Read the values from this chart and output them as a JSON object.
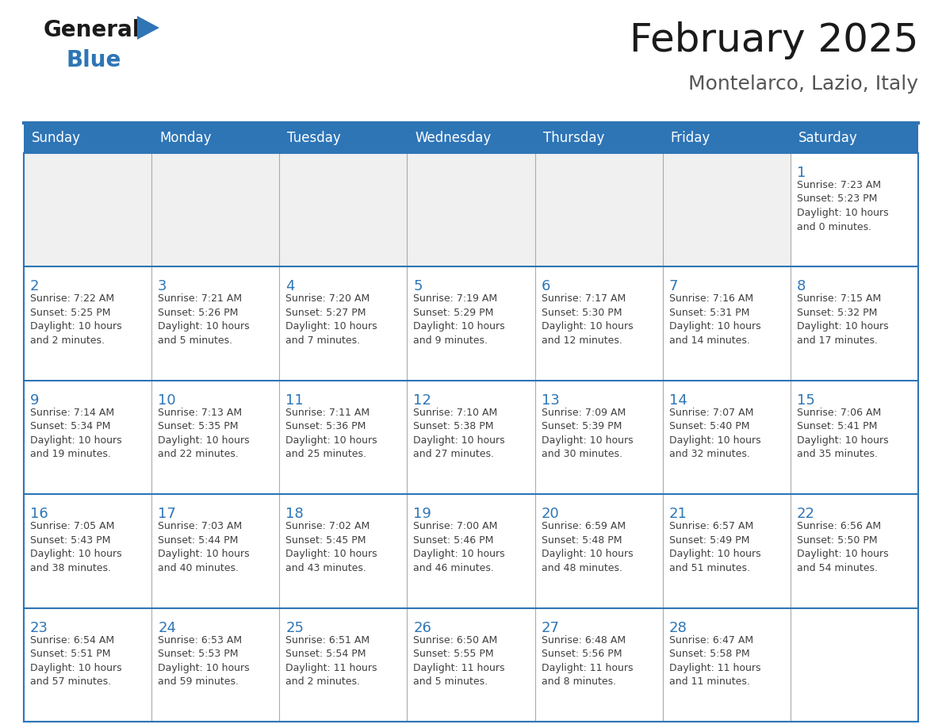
{
  "title": "February 2025",
  "subtitle": "Montelarco, Lazio, Italy",
  "header_bg": "#2E75B6",
  "header_text_color": "#FFFFFF",
  "day_number_color": "#2E75B6",
  "text_color": "#404040",
  "border_color": "#AAAAAA",
  "line_color": "#2E75B6",
  "cell_bg_gray": "#F0F0F0",
  "cell_bg_white": "#FFFFFF",
  "days_of_week": [
    "Sunday",
    "Monday",
    "Tuesday",
    "Wednesday",
    "Thursday",
    "Friday",
    "Saturday"
  ],
  "calendar": [
    [
      {
        "day": null,
        "info": null
      },
      {
        "day": null,
        "info": null
      },
      {
        "day": null,
        "info": null
      },
      {
        "day": null,
        "info": null
      },
      {
        "day": null,
        "info": null
      },
      {
        "day": null,
        "info": null
      },
      {
        "day": 1,
        "info": "Sunrise: 7:23 AM\nSunset: 5:23 PM\nDaylight: 10 hours\nand 0 minutes."
      }
    ],
    [
      {
        "day": 2,
        "info": "Sunrise: 7:22 AM\nSunset: 5:25 PM\nDaylight: 10 hours\nand 2 minutes."
      },
      {
        "day": 3,
        "info": "Sunrise: 7:21 AM\nSunset: 5:26 PM\nDaylight: 10 hours\nand 5 minutes."
      },
      {
        "day": 4,
        "info": "Sunrise: 7:20 AM\nSunset: 5:27 PM\nDaylight: 10 hours\nand 7 minutes."
      },
      {
        "day": 5,
        "info": "Sunrise: 7:19 AM\nSunset: 5:29 PM\nDaylight: 10 hours\nand 9 minutes."
      },
      {
        "day": 6,
        "info": "Sunrise: 7:17 AM\nSunset: 5:30 PM\nDaylight: 10 hours\nand 12 minutes."
      },
      {
        "day": 7,
        "info": "Sunrise: 7:16 AM\nSunset: 5:31 PM\nDaylight: 10 hours\nand 14 minutes."
      },
      {
        "day": 8,
        "info": "Sunrise: 7:15 AM\nSunset: 5:32 PM\nDaylight: 10 hours\nand 17 minutes."
      }
    ],
    [
      {
        "day": 9,
        "info": "Sunrise: 7:14 AM\nSunset: 5:34 PM\nDaylight: 10 hours\nand 19 minutes."
      },
      {
        "day": 10,
        "info": "Sunrise: 7:13 AM\nSunset: 5:35 PM\nDaylight: 10 hours\nand 22 minutes."
      },
      {
        "day": 11,
        "info": "Sunrise: 7:11 AM\nSunset: 5:36 PM\nDaylight: 10 hours\nand 25 minutes."
      },
      {
        "day": 12,
        "info": "Sunrise: 7:10 AM\nSunset: 5:38 PM\nDaylight: 10 hours\nand 27 minutes."
      },
      {
        "day": 13,
        "info": "Sunrise: 7:09 AM\nSunset: 5:39 PM\nDaylight: 10 hours\nand 30 minutes."
      },
      {
        "day": 14,
        "info": "Sunrise: 7:07 AM\nSunset: 5:40 PM\nDaylight: 10 hours\nand 32 minutes."
      },
      {
        "day": 15,
        "info": "Sunrise: 7:06 AM\nSunset: 5:41 PM\nDaylight: 10 hours\nand 35 minutes."
      }
    ],
    [
      {
        "day": 16,
        "info": "Sunrise: 7:05 AM\nSunset: 5:43 PM\nDaylight: 10 hours\nand 38 minutes."
      },
      {
        "day": 17,
        "info": "Sunrise: 7:03 AM\nSunset: 5:44 PM\nDaylight: 10 hours\nand 40 minutes."
      },
      {
        "day": 18,
        "info": "Sunrise: 7:02 AM\nSunset: 5:45 PM\nDaylight: 10 hours\nand 43 minutes."
      },
      {
        "day": 19,
        "info": "Sunrise: 7:00 AM\nSunset: 5:46 PM\nDaylight: 10 hours\nand 46 minutes."
      },
      {
        "day": 20,
        "info": "Sunrise: 6:59 AM\nSunset: 5:48 PM\nDaylight: 10 hours\nand 48 minutes."
      },
      {
        "day": 21,
        "info": "Sunrise: 6:57 AM\nSunset: 5:49 PM\nDaylight: 10 hours\nand 51 minutes."
      },
      {
        "day": 22,
        "info": "Sunrise: 6:56 AM\nSunset: 5:50 PM\nDaylight: 10 hours\nand 54 minutes."
      }
    ],
    [
      {
        "day": 23,
        "info": "Sunrise: 6:54 AM\nSunset: 5:51 PM\nDaylight: 10 hours\nand 57 minutes."
      },
      {
        "day": 24,
        "info": "Sunrise: 6:53 AM\nSunset: 5:53 PM\nDaylight: 10 hours\nand 59 minutes."
      },
      {
        "day": 25,
        "info": "Sunrise: 6:51 AM\nSunset: 5:54 PM\nDaylight: 11 hours\nand 2 minutes."
      },
      {
        "day": 26,
        "info": "Sunrise: 6:50 AM\nSunset: 5:55 PM\nDaylight: 11 hours\nand 5 minutes."
      },
      {
        "day": 27,
        "info": "Sunrise: 6:48 AM\nSunset: 5:56 PM\nDaylight: 11 hours\nand 8 minutes."
      },
      {
        "day": 28,
        "info": "Sunrise: 6:47 AM\nSunset: 5:58 PM\nDaylight: 11 hours\nand 11 minutes."
      },
      {
        "day": null,
        "info": null
      }
    ]
  ],
  "logo_text_general": "General",
  "logo_text_blue": "Blue",
  "logo_color_general": "#1a1a1a",
  "logo_color_blue": "#2E75B6",
  "logo_triangle_color": "#2E75B6",
  "title_fontsize": 36,
  "subtitle_fontsize": 18,
  "header_fontsize": 12,
  "day_num_fontsize": 13,
  "info_fontsize": 9
}
